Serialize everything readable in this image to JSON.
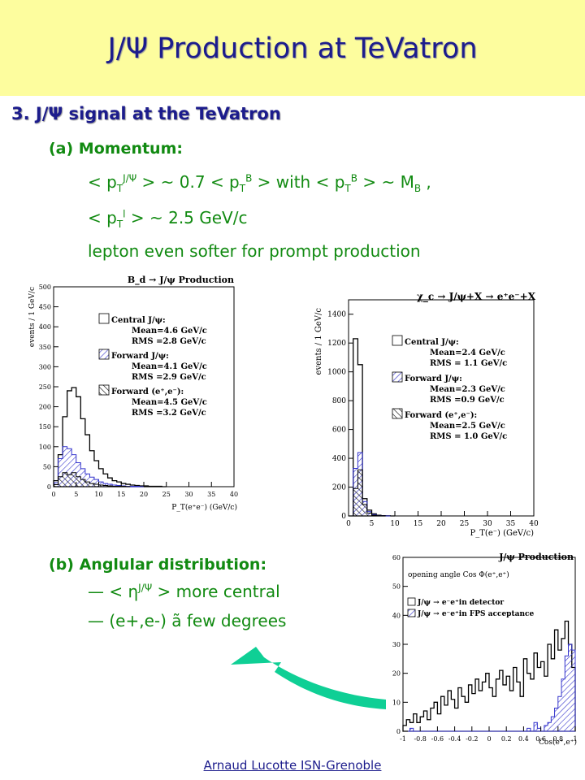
{
  "slide": {
    "title": "J/Ψ Production at TeVatron",
    "section_number": "3.",
    "section_title": "J/Ψ signal at the TeVatron",
    "momentum": {
      "heading": "(a) Momentum:",
      "line1_a": "< p",
      "line1_a_sub": "T",
      "line1_a_sup": "J/Ψ",
      "line1_b": " > ~ 0.7 < p",
      "line1_b_sub": "T",
      "line1_b_sup": "B",
      "line1_c": " > with < p",
      "line1_c_sub": "T",
      "line1_c_sup": "B",
      "line1_d": " > ~ M",
      "line1_d_sub": "B",
      "line1_e": " ,",
      "line2_a": "< p",
      "line2_a_sub": "T",
      "line2_a_sup": "l",
      "line2_b": " > ~ 2.5 GeV/c",
      "line3": "lepton even softer for prompt production"
    },
    "angular": {
      "heading": "(b) Anglular distribution:",
      "line1_prefix": "— < η",
      "line1_sup": "J/Ψ",
      "line1_suffix": " > more central",
      "line2": "— (e+,e-) ã few degrees"
    },
    "footer": "Arnaud Lucotte  ISN-Grenoble"
  },
  "colors": {
    "banner": "#fdfd9e",
    "title_text": "#1c1c8c",
    "body_green": "#118a11",
    "arrow": "#0fcf95",
    "hatch_blue": "#3333cc"
  },
  "chart_data": [
    {
      "type": "bar",
      "title": "B_d → J/ψ Production",
      "xlabel": "P_T(e⁺e⁻) (GeV/c)",
      "ylabel": "events / 1 GeV/c",
      "xlim": [
        0,
        40
      ],
      "ylim": [
        0,
        500
      ],
      "xticks": [
        0,
        5,
        10,
        15,
        20,
        25,
        30,
        35,
        40
      ],
      "yticks": [
        0,
        50,
        100,
        150,
        200,
        250,
        300,
        350,
        400,
        450,
        500
      ],
      "legend": [
        {
          "label": "Central J/ψ:",
          "style": "open",
          "lines": [
            "Mean=4.6 GeV/c",
            "RMS =2.8 GeV/c"
          ]
        },
        {
          "label": "Forward J/ψ:",
          "style": "hatch-blue",
          "lines": [
            "Mean=4.1 GeV/c",
            "RMS =2.9 GeV/c"
          ]
        },
        {
          "label": "Forward (e⁺,e⁻):",
          "style": "hatch-black",
          "lines": [
            "Mean=4.5 GeV/c",
            "RMS =3.2 GeV/c"
          ]
        }
      ],
      "series": [
        {
          "name": "Central J/ψ",
          "values": [
            15,
            80,
            175,
            240,
            248,
            225,
            170,
            130,
            90,
            65,
            45,
            32,
            22,
            15,
            12,
            8,
            6,
            4,
            3,
            2,
            2,
            1,
            1,
            1,
            0
          ]
        },
        {
          "name": "Forward J/ψ",
          "values": [
            10,
            70,
            100,
            95,
            80,
            60,
            45,
            32,
            24,
            18,
            12,
            8,
            6,
            4,
            3,
            2,
            1,
            1,
            1,
            0
          ]
        },
        {
          "name": "Forward (e⁺,e⁻)",
          "values": [
            5,
            25,
            35,
            30,
            35,
            25,
            18,
            12,
            8,
            6,
            4,
            3,
            2,
            1,
            1,
            1,
            0
          ]
        }
      ]
    },
    {
      "type": "bar",
      "title": "χ_c → J/ψ+X → e⁺e⁻+X",
      "xlabel": "P_T(e⁻) (GeV/c)",
      "ylabel": "events / 1 GeV/c",
      "xlim": [
        0,
        40
      ],
      "ylim": [
        0,
        1500
      ],
      "xticks": [
        0,
        5,
        10,
        15,
        20,
        25,
        30,
        35,
        40
      ],
      "yticks": [
        0,
        200,
        400,
        600,
        800,
        1000,
        1200,
        1400
      ],
      "legend": [
        {
          "label": "Central J/ψ:",
          "style": "open",
          "lines": [
            "Mean=2.4 GeV/c",
            "RMS = 1.1 GeV/c"
          ]
        },
        {
          "label": "Forward J/ψ:",
          "style": "hatch-blue",
          "lines": [
            "Mean=2.3 GeV/c",
            "RMS =0.9 GeV/c"
          ]
        },
        {
          "label": "Forward (e⁺,e⁻):",
          "style": "hatch-black",
          "lines": [
            "Mean=2.5 GeV/c",
            "RMS = 1.0 GeV/c"
          ]
        }
      ],
      "series": [
        {
          "name": "Central J/ψ",
          "values": [
            0,
            1230,
            1050,
            120,
            40,
            15,
            5,
            2,
            1,
            0
          ]
        },
        {
          "name": "Forward J/ψ",
          "values": [
            0,
            330,
            440,
            100,
            30,
            10,
            3,
            1,
            0
          ]
        },
        {
          "name": "Forward (e⁺,e⁻)",
          "values": [
            0,
            190,
            320,
            80,
            20,
            5,
            2,
            0
          ]
        }
      ]
    },
    {
      "type": "bar",
      "title": "J/ψ Production",
      "subtitle": "opening angle Cos Φ(e⁺,e⁺)",
      "xlabel": "Cos(e⁺,e⁺)",
      "ylabel": "",
      "xlim": [
        -1,
        1
      ],
      "ylim": [
        0,
        60
      ],
      "xticks": [
        -1,
        -0.8,
        -0.6,
        -0.4,
        -0.2,
        0,
        0.2,
        0.4,
        0.6,
        0.8,
        1
      ],
      "xtick_labels": [
        "-1",
        "-0.8",
        "-0.6",
        "-0.4",
        "-0.2",
        "0",
        "0.2",
        "0.4",
        "0.6",
        "0.8",
        "1"
      ],
      "yticks": [
        0,
        10,
        20,
        30,
        40,
        50,
        60
      ],
      "legend": [
        {
          "label": "J/ψ → e⁻e⁺in detector",
          "style": "open"
        },
        {
          "label": "J/ψ → e⁻e⁺in FPS acceptance",
          "style": "hatch-blue"
        }
      ],
      "bin_width": 0.04,
      "series": [
        {
          "name": "J/ψ → e⁻e⁺in detector",
          "values": [
            2,
            4,
            3,
            6,
            3,
            5,
            7,
            4,
            8,
            10,
            6,
            12,
            9,
            14,
            11,
            8,
            15,
            12,
            10,
            16,
            13,
            18,
            14,
            17,
            20,
            15,
            12,
            18,
            21,
            16,
            19,
            14,
            22,
            17,
            12,
            25,
            20,
            18,
            27,
            22,
            24,
            19,
            30,
            25,
            35,
            28,
            32,
            38,
            30,
            22
          ]
        },
        {
          "name": "J/ψ → e⁻e⁺in FPS acceptance",
          "values": [
            0,
            0,
            1,
            0,
            0,
            0,
            0,
            0,
            0,
            0,
            0,
            0,
            0,
            0,
            0,
            0,
            0,
            0,
            0,
            0,
            0,
            0,
            0,
            0,
            0,
            0,
            0,
            0,
            0,
            0,
            0,
            0,
            0,
            0,
            0,
            0,
            1,
            0,
            3,
            1,
            0,
            2,
            3,
            5,
            8,
            12,
            18,
            26,
            30,
            28
          ]
        }
      ]
    }
  ]
}
